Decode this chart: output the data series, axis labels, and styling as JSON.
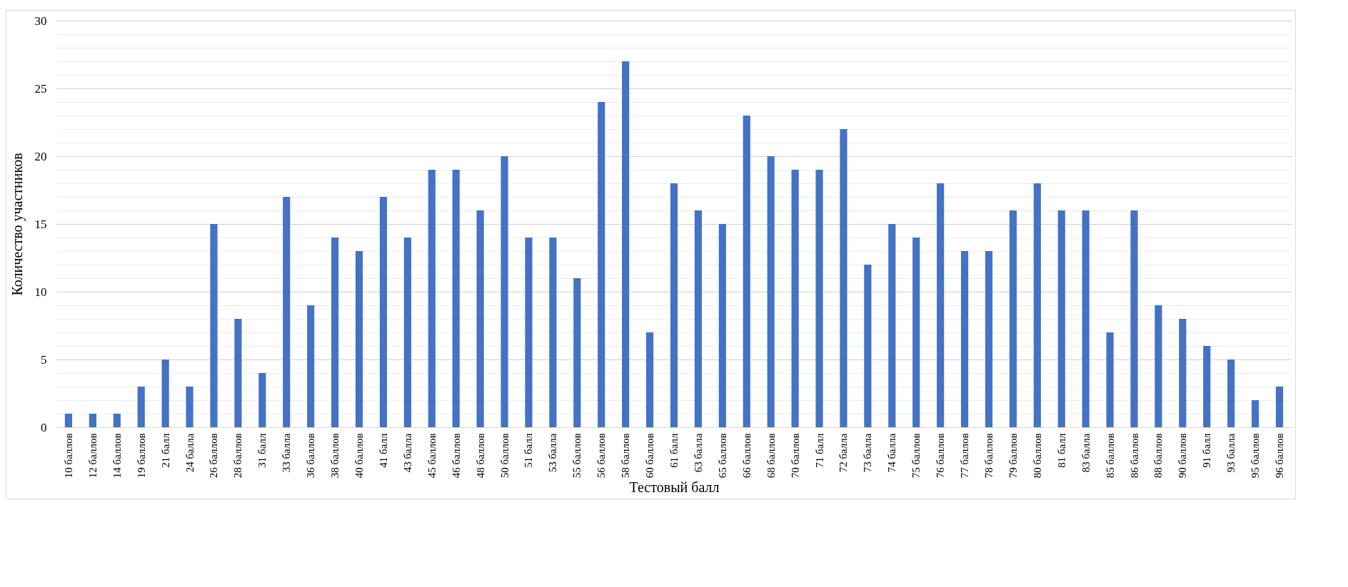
{
  "chart_data": {
    "type": "bar",
    "xlabel": "Тестовый балл",
    "ylabel": "Количество участников",
    "color": "#4472c4",
    "grid": "y",
    "categories": [
      "10 баллов",
      "12 баллов",
      "14 баллов",
      "19 баллов",
      "21 балл",
      "24 балла",
      "26 баллов",
      "28 баллов",
      "31 балл",
      "33 балла",
      "36 баллов",
      "38 баллов",
      "40 баллов",
      "41 балл",
      "43 балла",
      "45 баллов",
      "46 баллов",
      "48 баллов",
      "50 баллов",
      "51 балл",
      "53 балла",
      "55 баллов",
      "56 баллов",
      "58 баллов",
      "60 баллов",
      "61 балл",
      "63 балла",
      "65 баллов",
      "66 баллов",
      "68 баллов",
      "70 баллов",
      "71 балл",
      "72 балла",
      "73 балла",
      "74 балла",
      "75 баллов",
      "76 баллов",
      "77 баллов",
      "78 баллов",
      "79 баллов",
      "80 баллов",
      "81 балл",
      "83 балла",
      "85 баллов",
      "86 баллов",
      "88 баллов",
      "90 баллов",
      "91 балл",
      "93 балла",
      "95 баллов",
      "96 баллов"
    ],
    "values": [
      1,
      1,
      1,
      3,
      5,
      3,
      15,
      8,
      4,
      17,
      9,
      14,
      13,
      17,
      14,
      19,
      19,
      16,
      20,
      14,
      14,
      11,
      24,
      27,
      7,
      18,
      16,
      15,
      23,
      20,
      19,
      19,
      22,
      12,
      15,
      14,
      18,
      13,
      13,
      16,
      18,
      16,
      16,
      7,
      16,
      9,
      8,
      6,
      5,
      2,
      3
    ],
    "ylim": [
      0,
      30
    ],
    "yticks": [
      0,
      {
        "value": 1,
        "label": null
      },
      {
        "value": 2,
        "label": null
      },
      {
        "value": 3,
        "label": null
      },
      {
        "value": 4,
        "label": null
      },
      5,
      {
        "value": 6,
        "label": null
      },
      {
        "value": 7,
        "label": null
      },
      {
        "value": 8,
        "label": null
      },
      {
        "value": 9,
        "label": null
      },
      10,
      {
        "value": 11,
        "label": null
      },
      {
        "value": 12,
        "label": null
      },
      {
        "value": 13,
        "label": null
      },
      {
        "value": 14,
        "label": null
      },
      15,
      {
        "value": 16,
        "label": null
      },
      {
        "value": 17,
        "label": null
      },
      {
        "value": 18,
        "label": null
      },
      {
        "value": 19,
        "label": null
      },
      20,
      {
        "value": 21,
        "label": null
      },
      {
        "value": 22,
        "label": null
      },
      {
        "value": 23,
        "label": null
      },
      {
        "value": 24,
        "label": null
      },
      25,
      {
        "value": 26,
        "label": null
      },
      {
        "value": 27,
        "label": null
      },
      {
        "value": 28,
        "label": null
      },
      {
        "value": 29,
        "label": null
      },
      30
    ]
  }
}
